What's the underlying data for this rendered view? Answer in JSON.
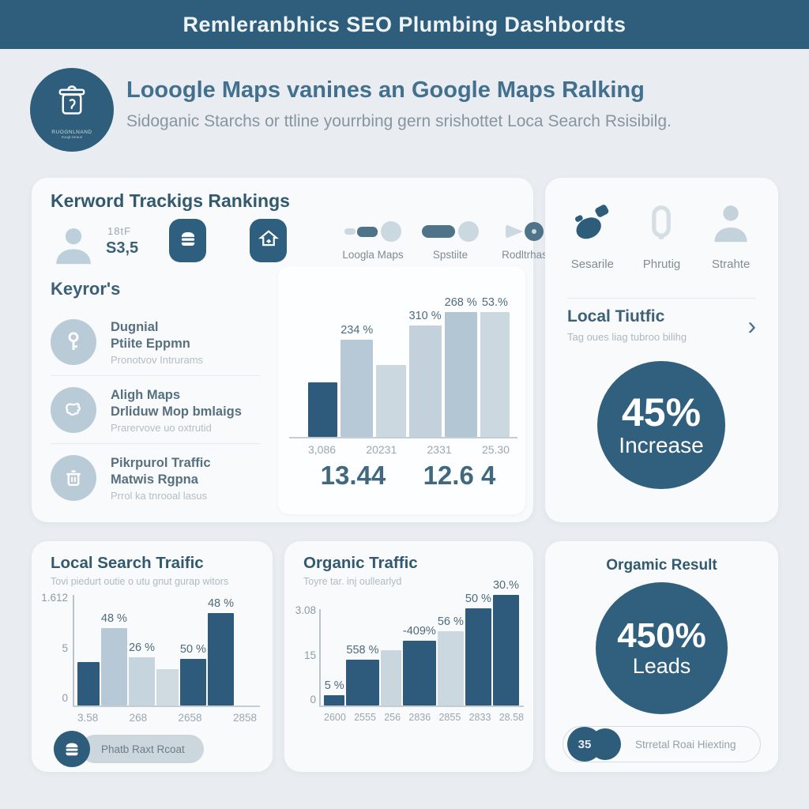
{
  "colors": {
    "header_bg": "#2e5e7b",
    "page_bg": "#e9edf1",
    "card_bg": "#f8fafb",
    "dark_bar": "#2e5a7c",
    "light_bar": "#b7c9d6",
    "circle_bg": "#30607e",
    "title_text": "#33596e"
  },
  "icons": {
    "logo": "trash-can-icon",
    "keyword_items": [
      "key-icon",
      "map-icon",
      "trash-icon"
    ],
    "header_buttons": [
      "burger-icon",
      "house-icon"
    ],
    "local_card": [
      "wrench-icon",
      "bottle-icon",
      "person-icon"
    ]
  },
  "header": {
    "title": "Remleranbhics SEO Plumbing Dashbordts"
  },
  "hero": {
    "logo_text": "RUOGNLNAND",
    "logo_subtext": "rtuogt snraun",
    "title": "Looogle Maps vanines an Google Maps Ralking",
    "subtitle": "Sidoganic Starchs or ttline yourrbing gern srishottet Loca Search Rsisibilg."
  },
  "keyword_card": {
    "title": "Kerword Trackigs Rankings",
    "stat_small": "18tF",
    "stat_big": "S3,5",
    "toggles": [
      {
        "label": "Loogla Maps"
      },
      {
        "label": "Spstiite"
      },
      {
        "label": "Rodltrhas"
      }
    ],
    "keywords_title": "Keyror's",
    "items": [
      {
        "line1": "Dugnial",
        "line2": "Ptiite Eppmn",
        "line3": "Pronotvov Intrurams"
      },
      {
        "line1": "Aligh Maps",
        "line2": "Drliduw Mop bmlaigs",
        "line3": "Prarervove uo oxtrutid"
      },
      {
        "line1": "Pikrpurol Traffic",
        "line2": "Matwis Rgpna",
        "line3": "Prrol ka tnrooal lasus"
      }
    ],
    "big_values": [
      "13.44",
      "12.6 4"
    ]
  },
  "local_card": {
    "icons": [
      {
        "label": "Sesarile"
      },
      {
        "label": "Phrutig"
      },
      {
        "label": "Strahte"
      }
    ],
    "section_title": "Local Tiutfic",
    "section_subtitle": "Tag oues liag tubroo bilihg",
    "chevron": "›",
    "badge_value": "45%",
    "badge_label": "Increase"
  },
  "local_search_card": {
    "title": "Local Search Traific",
    "subtitle": "Tovi piedurt outie o utu gnut gurap witors",
    "button_label": "Phatb Raxt Rcoat"
  },
  "organic_traffic_card": {
    "title": "Organic Traffic",
    "subtitle": "Toyre tar. inj oullearlyd"
  },
  "organic_result_card": {
    "title": "Orgamic Result",
    "badge_value": "450%",
    "badge_label": "Leads",
    "search_badge": "35",
    "search_text": "Strretal Roai Hiexting"
  },
  "chart_data": [
    {
      "type": "bar",
      "title": "Kerword Trackigs Rankings",
      "values": [
        39,
        69,
        51,
        79,
        90,
        95
      ],
      "value_unit": "percent-of-plot-height",
      "bar_labels": [
        "",
        "234 %",
        "",
        "310 %",
        "268 %",
        "53.%"
      ],
      "xticklabels": [
        "3,086",
        "20231",
        "2331",
        "25.30"
      ],
      "yticks": [],
      "colors": [
        "#2e5a7c",
        "#b7c9d6",
        "#ccd8e0",
        "#c2d1db",
        "#b3c6d3",
        "#ccd8e0"
      ],
      "grid": false,
      "legend": false
    },
    {
      "type": "bar",
      "title": "Local Search Traific",
      "values": [
        40,
        71,
        44,
        33,
        43,
        85
      ],
      "value_unit": "percent-of-plot-height",
      "bar_labels": [
        "",
        "48 %",
        "26 %",
        "",
        "50 %",
        "48 %"
      ],
      "xticklabels": [
        "3.58",
        "268",
        "2658",
        "2858"
      ],
      "yticks": [
        "1.612",
        "5",
        "0"
      ],
      "colors": [
        "#2e5a7c",
        "#b7c9d6",
        "#c6d4dd",
        "#cfdae1",
        "#2e5a7c",
        "#2e5a7c"
      ],
      "ylim": [
        0,
        1612
      ],
      "grid": false,
      "legend": false
    },
    {
      "type": "bar",
      "title": "Organic Traffic",
      "values": [
        8,
        36,
        44,
        51,
        59,
        77,
        97
      ],
      "value_unit": "percent-of-plot-height",
      "bar_labels": [
        "5 %",
        "558 %",
        "",
        "-409%",
        "56 %",
        "50 %",
        "30.%"
      ],
      "xticklabels": [
        "2600",
        "2555",
        "256",
        "2836",
        "2855",
        "2833",
        "28.58"
      ],
      "yticks": [
        "3.08",
        "15",
        "0"
      ],
      "colors": [
        "#2e5a7c",
        "#2e5a7c",
        "#c9d6de",
        "#2e5a7c",
        "#ccd8e0",
        "#2e5a7c",
        "#2e5a7c"
      ],
      "grid": false,
      "legend": false
    }
  ]
}
